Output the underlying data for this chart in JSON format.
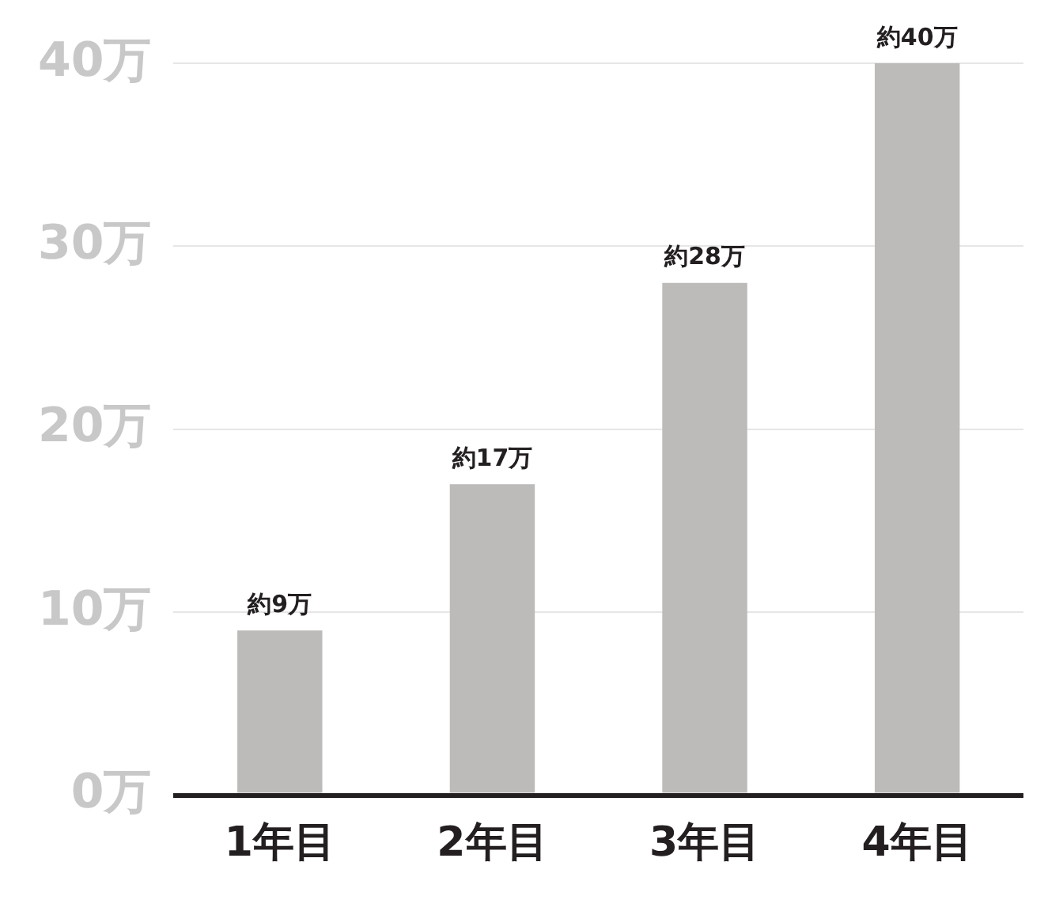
{
  "chart_data": {
    "type": "bar",
    "categories": [
      "1年目",
      "2年目",
      "3年目",
      "4年目"
    ],
    "values": [
      9,
      17,
      28,
      40
    ],
    "color": "#bdbbba",
    "value_labels": [
      "約9万",
      "約17万",
      "約28万",
      "約40万"
    ],
    "ylim": [
      0,
      40
    ],
    "yticks": [
      {
        "value": 0,
        "label": "0万"
      },
      {
        "value": 10,
        "label": "10万"
      },
      {
        "value": 20,
        "label": "20万"
      },
      {
        "value": 30,
        "label": "30万"
      },
      {
        "value": 40,
        "label": "40万"
      }
    ],
    "grid": "y"
  }
}
